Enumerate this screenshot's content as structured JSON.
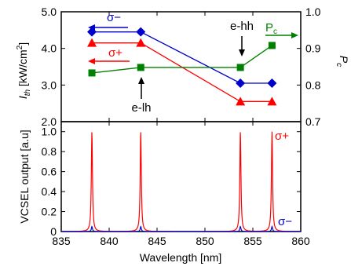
{
  "chart_data": [
    {
      "type": "line",
      "panel": "top",
      "xlim": [
        835,
        860
      ],
      "ylim_left": [
        2.0,
        5.0
      ],
      "ylim_right": [
        0.7,
        1.0
      ],
      "ylabel_left_main": "I",
      "ylabel_left_sub": "th",
      "ylabel_left_unit": " [kW/cm",
      "ylabel_left_sup": "2",
      "ylabel_left_close": "]",
      "ylabel_right_main": "P",
      "ylabel_right_sub": "c",
      "yticks_left": [
        "2.0",
        "3.0",
        "4.0",
        "5.0"
      ],
      "yticks_right": [
        "0.7",
        "0.8",
        "0.9",
        "1.0"
      ],
      "series": [
        {
          "name": "σ−",
          "axis": "left",
          "color": "#0000cc",
          "marker": "diamond",
          "x": [
            838.2,
            843.3,
            853.7,
            857.0
          ],
          "y": [
            4.45,
            4.45,
            3.05,
            3.05
          ]
        },
        {
          "name": "σ+",
          "axis": "left",
          "color": "#ff0000",
          "marker": "triangle",
          "x": [
            838.2,
            843.3,
            853.7,
            857.0
          ],
          "y": [
            4.15,
            4.15,
            2.55,
            2.55
          ]
        },
        {
          "name": "P_c",
          "axis": "right",
          "color": "#008000",
          "marker": "square",
          "x": [
            838.2,
            843.3,
            853.7,
            857.0
          ],
          "y": [
            0.833,
            0.848,
            0.848,
            0.908
          ]
        }
      ],
      "annotations": {
        "sigma_minus": "σ−",
        "sigma_plus": "σ+",
        "pc_main": "P",
        "pc_sub": "c",
        "e_hh": "e-hh",
        "e_lh": "e-lh"
      }
    },
    {
      "type": "line",
      "panel": "bottom",
      "xlabel": "Wavelength [nm]",
      "ylabel": "VCSEL output [a.u]",
      "xlim": [
        835,
        860
      ],
      "ylim": [
        0,
        1.1
      ],
      "xticks": [
        "835",
        "840",
        "845",
        "850",
        "855",
        "860"
      ],
      "yticks": [
        "0",
        "0.2",
        "0.4",
        "0.6",
        "0.8",
        "1.0"
      ],
      "peaks_nm": [
        838.2,
        843.3,
        853.7,
        857.0
      ],
      "series": [
        {
          "name": "σ+",
          "color": "#ff0000",
          "peak_heights": [
            1.0,
            1.0,
            1.0,
            1.0
          ]
        },
        {
          "name": "σ−",
          "color": "#0000cc",
          "peak_heights": [
            0.05,
            0.05,
            0.05,
            0.05
          ]
        }
      ],
      "annotations": {
        "sigma_plus": "σ+",
        "sigma_minus": "σ−"
      }
    }
  ]
}
